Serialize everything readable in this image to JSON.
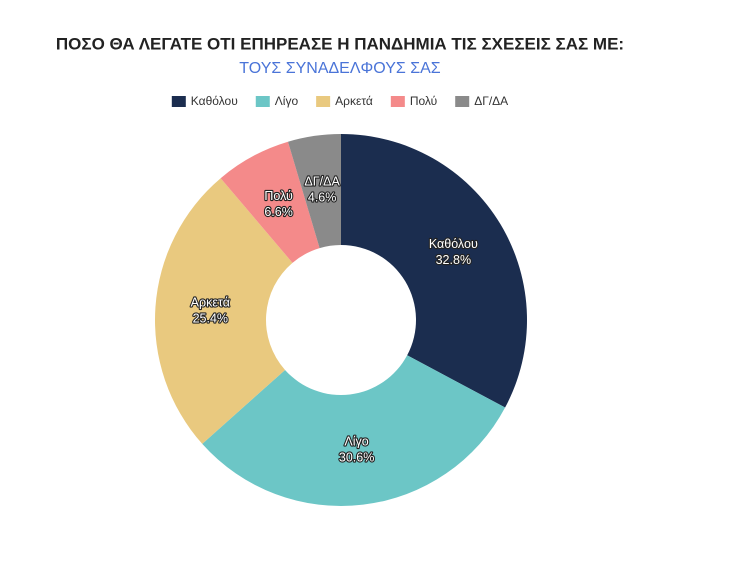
{
  "chart_data": {
    "type": "donut",
    "title": "ΠΟΣΟ ΘΑ ΛΕΓΑΤΕ ΟΤΙ ΕΠΗΡΕΑΣΕ Η ΠΑΝΔΗΜΙΑ ΤΙΣ ΣΧΕΣΕΙΣ ΣΑΣ ΜΕ:",
    "subtitle": "ΤΟΥΣ ΣΥΝΑΔΕΛΦΟΥΣ ΣΑΣ",
    "categories": [
      "Καθόλου",
      "Λίγο",
      "Αρκετά",
      "Πολύ",
      "ΔΓ/ΔΑ"
    ],
    "values": [
      32.8,
      30.6,
      25.4,
      6.6,
      4.6
    ],
    "value_labels": [
      "32.8%",
      "30.6%",
      "25.4%",
      "6.6%",
      "4.6%"
    ],
    "colors": [
      "#1b2d4f",
      "#6cc6c6",
      "#e9c97f",
      "#f48a8a",
      "#8a8a8a"
    ],
    "legend": "top"
  }
}
